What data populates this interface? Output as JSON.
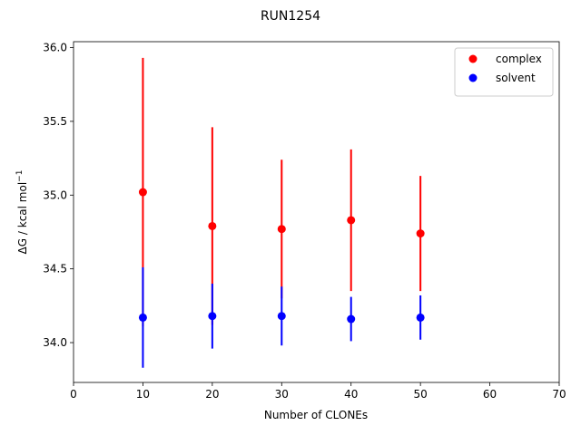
{
  "chart_data": {
    "type": "scatter",
    "title": "RUN1254",
    "xlabel": "Number of CLONEs",
    "ylabel_main": "ΔG / kcal mol",
    "ylabel_sup": "−1",
    "xlim": [
      0,
      70
    ],
    "ylim": [
      33.73,
      36.04
    ],
    "xticks": [
      0,
      10,
      20,
      30,
      40,
      50,
      60,
      70
    ],
    "yticks": [
      34.0,
      34.5,
      35.0,
      35.5,
      36.0
    ],
    "ytick_labels": [
      "34.0",
      "34.5",
      "35.0",
      "35.5",
      "36.0"
    ],
    "grid": false,
    "legend_position": "top-right",
    "series": [
      {
        "name": "complex",
        "color": "#ff0000",
        "x": [
          10,
          20,
          30,
          40,
          50
        ],
        "y": [
          35.02,
          34.79,
          34.77,
          34.83,
          34.74
        ],
        "err": [
          0.91,
          0.67,
          0.47,
          0.48,
          0.39
        ]
      },
      {
        "name": "solvent",
        "color": "#0000ff",
        "x": [
          10,
          20,
          30,
          40,
          50
        ],
        "y": [
          34.17,
          34.18,
          34.18,
          34.16,
          34.17
        ],
        "err": [
          0.34,
          0.22,
          0.2,
          0.15,
          0.15
        ]
      }
    ]
  }
}
